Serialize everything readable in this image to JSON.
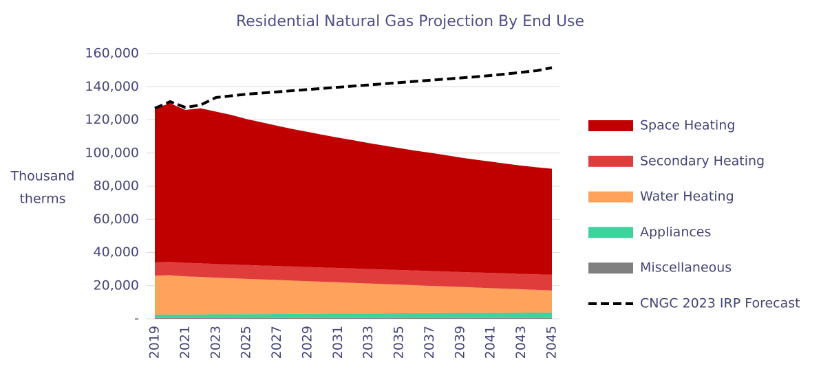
{
  "chart_data": {
    "type": "stacked_area",
    "title": "Residential Natural Gas Projection By End Use",
    "ylabel_lines": [
      "Thousand",
      "therms"
    ],
    "x": [
      2019,
      2020,
      2021,
      2022,
      2023,
      2024,
      2025,
      2026,
      2027,
      2028,
      2029,
      2030,
      2031,
      2032,
      2033,
      2034,
      2035,
      2036,
      2037,
      2038,
      2039,
      2040,
      2041,
      2042,
      2043,
      2044,
      2045
    ],
    "xlim": [
      2019,
      2045
    ],
    "xticks": [
      2019,
      2021,
      2023,
      2025,
      2027,
      2029,
      2031,
      2033,
      2035,
      2037,
      2039,
      2041,
      2043,
      2045
    ],
    "ylim": [
      0,
      160000
    ],
    "yticks": [
      {
        "value": 0,
        "label": "-"
      },
      {
        "value": 20000,
        "label": "20,000"
      },
      {
        "value": 40000,
        "label": "40,000"
      },
      {
        "value": 60000,
        "label": "60,000"
      },
      {
        "value": 80000,
        "label": "80,000"
      },
      {
        "value": 100000,
        "label": "100,000"
      },
      {
        "value": 120000,
        "label": "120,000"
      },
      {
        "value": 140000,
        "label": "140,000"
      },
      {
        "value": 160000,
        "label": "160,000"
      }
    ],
    "grid": true,
    "legend": "right",
    "series": [
      {
        "name": "Miscellaneous",
        "color": "#808080",
        "values": [
          500,
          500,
          500,
          500,
          500,
          500,
          500,
          500,
          500,
          500,
          500,
          500,
          500,
          500,
          500,
          500,
          500,
          500,
          500,
          500,
          500,
          500,
          500,
          500,
          500,
          500,
          500
        ]
      },
      {
        "name": "Appliances",
        "color": "#3DD39C",
        "values": [
          2000,
          2050,
          2100,
          2150,
          2200,
          2250,
          2300,
          2350,
          2400,
          2450,
          2500,
          2550,
          2600,
          2650,
          2700,
          2750,
          2800,
          2850,
          2900,
          2950,
          3000,
          3050,
          3100,
          3150,
          3200,
          3250,
          3300
        ]
      },
      {
        "name": "Water Heating",
        "color": "#FFA35C",
        "values": [
          23500,
          23700,
          23000,
          22600,
          22100,
          21700,
          21300,
          20900,
          20500,
          20100,
          19700,
          19300,
          18900,
          18500,
          18100,
          17700,
          17300,
          16900,
          16500,
          16100,
          15700,
          15300,
          14900,
          14500,
          14100,
          13700,
          13300
        ]
      },
      {
        "name": "Secondary Heating",
        "color": "#E03C3C",
        "values": [
          8000,
          8100,
          8150,
          8200,
          8250,
          8300,
          8350,
          8400,
          8450,
          8500,
          8550,
          8600,
          8650,
          8700,
          8750,
          8800,
          8850,
          8900,
          8950,
          9000,
          9050,
          9100,
          9200,
          9250,
          9300,
          9400,
          9500
        ]
      },
      {
        "name": "Space Heating",
        "color": "#C00000",
        "values": [
          93000,
          95650,
          92250,
          93550,
          91950,
          90250,
          88050,
          86350,
          84650,
          82950,
          81550,
          80050,
          78650,
          77350,
          75950,
          74750,
          73550,
          72350,
          71350,
          70250,
          69050,
          68050,
          67100,
          66200,
          65300,
          64550,
          63900
        ]
      },
      {
        "name": "CNGC 2023 IRP Forecast",
        "color": "#000000",
        "type": "line",
        "values": [
          127000,
          131000,
          127500,
          129000,
          133500,
          134500,
          135500,
          136200,
          136900,
          137600,
          138300,
          139000,
          139700,
          140400,
          141100,
          141800,
          142500,
          143200,
          143900,
          144600,
          145300,
          146000,
          146800,
          147700,
          148700,
          149700,
          151500
        ]
      }
    ]
  }
}
